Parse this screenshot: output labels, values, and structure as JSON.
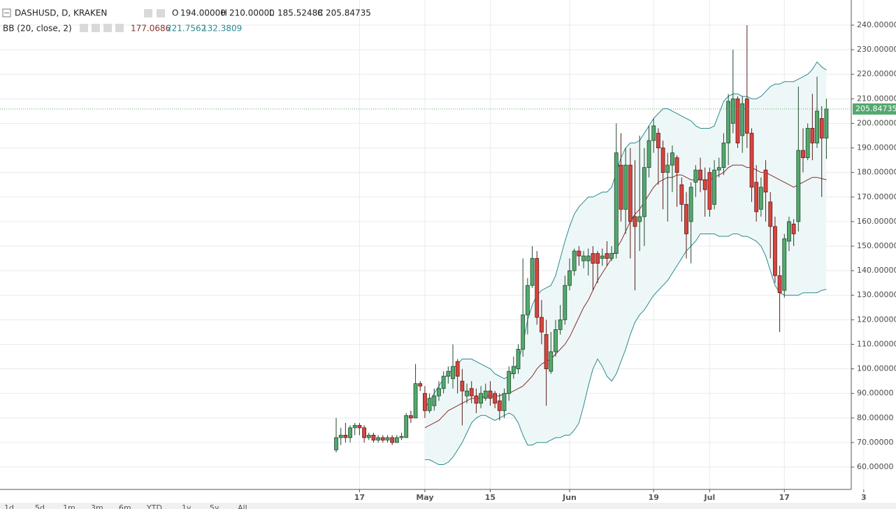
{
  "chart_data": {
    "type": "candlestick",
    "title": "DASHUSD, D, KRAKEN",
    "ohlc": [
      {
        "key": "O",
        "value": "194.00000"
      },
      {
        "key": "H",
        "value": "210.00000"
      },
      {
        "key": "L",
        "value": "185.52488"
      },
      {
        "key": "C",
        "value": "205.84735"
      }
    ],
    "indicator": {
      "name": "BB (20, close, 2)",
      "values": [
        "177.0686",
        "221.7562",
        "132.3809"
      ],
      "colors": [
        "#8b2d2d",
        "#2a8a8f",
        "#2a8a8f"
      ]
    },
    "categories": [
      null,
      null,
      null,
      null,
      null,
      "17",
      null,
      null,
      null,
      null,
      null,
      null,
      null,
      null,
      null,
      null,
      null,
      null,
      null,
      "May",
      null,
      null,
      null,
      null,
      null,
      null,
      null,
      null,
      null,
      null,
      null,
      null,
      null,
      "15",
      null,
      null,
      null,
      null,
      null,
      null,
      null,
      null,
      null,
      null,
      null,
      null,
      null,
      null,
      null,
      null,
      "Jun",
      null,
      null,
      null,
      null,
      null,
      null,
      null,
      null,
      null,
      null,
      null,
      null,
      null,
      null,
      null,
      null,
      null,
      "19",
      null,
      null,
      null,
      null,
      null,
      null,
      null,
      null,
      null,
      null,
      null,
      "Jul",
      null,
      null,
      null,
      null,
      null,
      null,
      null,
      null,
      null,
      null,
      null,
      null,
      null,
      null,
      null,
      "17",
      null,
      null,
      null,
      null,
      null,
      null,
      null,
      null,
      null,
      null,
      null,
      null,
      null,
      null,
      null,
      null,
      "3"
    ],
    "open": [
      67,
      72,
      73,
      72,
      76,
      77,
      76,
      72,
      73,
      71,
      72,
      71,
      72,
      70,
      72,
      72,
      81,
      80,
      94,
      90,
      83,
      85,
      89,
      92,
      97,
      96,
      103,
      95,
      89,
      92,
      89,
      86,
      88,
      91,
      90,
      87,
      83,
      90,
      98,
      100,
      108,
      122,
      134,
      145,
      121,
      114,
      99,
      107,
      116,
      120,
      134,
      140,
      148,
      144,
      144,
      147,
      147,
      145,
      147,
      145,
      147,
      183,
      165,
      183,
      162,
      160,
      162,
      182,
      193,
      196,
      190,
      180,
      183,
      186,
      175,
      167,
      160,
      176,
      181,
      177,
      180,
      167,
      181,
      182,
      192,
      200,
      210,
      195,
      210,
      196,
      176,
      165,
      181,
      168,
      158,
      138,
      132,
      152,
      159,
      160,
      189,
      186,
      198,
      192,
      202,
      194,
      null,
      null,
      null,
      null,
      null,
      null,
      null,
      null
    ],
    "high": [
      80,
      76,
      78,
      77,
      78,
      78,
      77,
      74,
      74,
      73,
      73,
      73,
      73,
      73,
      74,
      82,
      83,
      102,
      95,
      93,
      90,
      92,
      95,
      99,
      101,
      110,
      104,
      100,
      94,
      95,
      92,
      93,
      94,
      95,
      91,
      90,
      92,
      101,
      105,
      110,
      145,
      137,
      150,
      148,
      128,
      120,
      115,
      120,
      126,
      138,
      145,
      149,
      150,
      148,
      149,
      150,
      148,
      149,
      152,
      150,
      200,
      196,
      190,
      190,
      185,
      195,
      190,
      199,
      202,
      198,
      193,
      188,
      191,
      187,
      178,
      172,
      176,
      183,
      186,
      182,
      182,
      185,
      186,
      196,
      212,
      230,
      211,
      211,
      240,
      198,
      183,
      178,
      185,
      172,
      162,
      142,
      155,
      162,
      161,
      215,
      198,
      200,
      212,
      219,
      207,
      210,
      null,
      null,
      null,
      null,
      null,
      null,
      null,
      null
    ],
    "low": [
      66,
      69,
      70,
      70,
      73,
      73,
      70,
      71,
      70,
      70,
      70,
      70,
      69,
      70,
      71,
      72,
      78,
      80,
      91,
      80,
      82,
      83,
      87,
      90,
      94,
      92,
      90,
      77,
      86,
      86,
      82,
      84,
      87,
      85,
      84,
      79,
      80,
      87,
      96,
      98,
      105,
      114,
      133,
      118,
      110,
      85,
      98,
      105,
      114,
      118,
      132,
      138,
      142,
      141,
      138,
      132,
      135,
      142,
      142,
      144,
      145,
      160,
      155,
      145,
      132,
      148,
      150,
      178,
      188,
      175,
      165,
      160,
      172,
      166,
      160,
      145,
      143,
      170,
      172,
      162,
      162,
      165,
      178,
      179,
      183,
      196,
      190,
      188,
      190,
      168,
      160,
      162,
      160,
      145,
      135,
      115,
      129,
      148,
      150,
      156,
      180,
      185,
      185,
      190,
      170,
      185.52488,
      null,
      null,
      null,
      null,
      null,
      null,
      null,
      null
    ],
    "close": [
      72,
      73,
      72,
      76,
      77,
      76,
      72,
      73,
      71,
      72,
      71,
      72,
      70,
      72,
      72.5,
      81,
      80,
      94,
      93,
      83,
      88,
      89,
      92,
      97,
      99,
      101,
      97,
      91,
      91,
      89,
      86,
      90,
      91,
      88,
      86,
      83,
      90,
      99,
      101,
      108,
      122,
      134,
      145,
      121,
      115,
      100,
      107,
      116,
      120,
      134,
      140,
      148,
      146,
      146,
      146,
      143,
      143,
      146,
      145,
      147,
      188,
      165,
      183,
      160,
      158,
      162,
      182,
      193,
      199,
      190,
      180,
      183,
      188,
      180,
      167,
      155,
      174,
      181,
      177,
      173,
      165,
      181,
      182,
      192,
      209,
      210,
      192,
      208,
      196,
      174,
      164,
      174,
      172,
      158,
      138,
      131,
      153,
      160,
      155,
      189,
      186,
      198,
      192,
      205,
      194,
      205.84735,
      null,
      null,
      null,
      null,
      null,
      null,
      null,
      null
    ],
    "up_color": "#53a96e",
    "down_color": "#d9443e",
    "overlays": [
      {
        "color": "#8b2d2d",
        "values": [
          null,
          null,
          null,
          null,
          null,
          null,
          null,
          null,
          null,
          null,
          null,
          null,
          null,
          null,
          null,
          null,
          null,
          null,
          null,
          76,
          77,
          78,
          79,
          81,
          83,
          84,
          85,
          86,
          87,
          88,
          88,
          88,
          89,
          89,
          89,
          89,
          90,
          90,
          91,
          92,
          93,
          95,
          97,
          100,
          102,
          103,
          104,
          106,
          108,
          110,
          113,
          117,
          121,
          125,
          128,
          132,
          136,
          139,
          142,
          145,
          149,
          152,
          156,
          160,
          163,
          165,
          168,
          171,
          174,
          176,
          177,
          178,
          178,
          179,
          179,
          178,
          177,
          177,
          177,
          177,
          177,
          178,
          179,
          180,
          182,
          183,
          183,
          183,
          182,
          182,
          181,
          180,
          180,
          179,
          178,
          177,
          176,
          175,
          174,
          175,
          176,
          177,
          178,
          178,
          177.5,
          177.0686,
          null,
          null,
          null,
          null,
          null,
          null,
          null,
          null
        ]
      },
      {
        "color": "#2a8a8f",
        "values": [
          null,
          null,
          null,
          null,
          null,
          null,
          null,
          null,
          null,
          null,
          null,
          null,
          null,
          null,
          null,
          null,
          null,
          null,
          null,
          84,
          87,
          90,
          93,
          96,
          98,
          100,
          102,
          104,
          104,
          104,
          103,
          102,
          101,
          100,
          98,
          97,
          96,
          97,
          99,
          103,
          110,
          120,
          126,
          130,
          132,
          133,
          134,
          138,
          145,
          152,
          158,
          163,
          166,
          168,
          170,
          170,
          171,
          172,
          172,
          174,
          180,
          186,
          190,
          192,
          192,
          193,
          196,
          199,
          202,
          204,
          206,
          206,
          205,
          204,
          203,
          202,
          201,
          199,
          198,
          198,
          198,
          199,
          204,
          209,
          211,
          212,
          212,
          211,
          211,
          210,
          210,
          211,
          213,
          215,
          216,
          216,
          217,
          217,
          217,
          218,
          219,
          220,
          222,
          225,
          223,
          221.7562,
          null,
          null,
          null,
          null,
          null,
          null,
          null,
          null
        ]
      },
      {
        "color": "#2a8a8f",
        "values": [
          null,
          null,
          null,
          null,
          null,
          null,
          null,
          null,
          null,
          null,
          null,
          null,
          null,
          null,
          null,
          null,
          null,
          null,
          null,
          63,
          63,
          62,
          61,
          61,
          62,
          64,
          67,
          70,
          74,
          78,
          80,
          81,
          81,
          80,
          79,
          80,
          81,
          82,
          81,
          78,
          73,
          69,
          69,
          70,
          70,
          70,
          71,
          72,
          72,
          73,
          73,
          75,
          78,
          85,
          93,
          100,
          104,
          101,
          97,
          95,
          98,
          103,
          108,
          114,
          119,
          122,
          124,
          127,
          130,
          132,
          134,
          136,
          139,
          142,
          145,
          148,
          150,
          152,
          155,
          155,
          155,
          155,
          154,
          154,
          154,
          155,
          155,
          154,
          154,
          153,
          152,
          150,
          146,
          140,
          134,
          131,
          130,
          130,
          130,
          130,
          131,
          131,
          131,
          131,
          132,
          132.3809,
          null,
          null,
          null,
          null,
          null,
          null,
          null,
          null
        ]
      }
    ],
    "band_fill": "#eef7f7",
    "ylim": [
      50.9,
      250.25
    ],
    "yticks": [
      {
        "value": 60,
        "label": "60.00000"
      },
      {
        "value": 70,
        "label": "70.00000"
      },
      {
        "value": 80,
        "label": "80.00000"
      },
      {
        "value": 90,
        "label": "90.00000"
      },
      {
        "value": 100,
        "label": "100.00000"
      },
      {
        "value": 110,
        "label": "110.00000"
      },
      {
        "value": 120,
        "label": "120.00000"
      },
      {
        "value": 130,
        "label": "130.00000"
      },
      {
        "value": 140,
        "label": "140.00000"
      },
      {
        "value": 150,
        "label": "150.00000"
      },
      {
        "value": 160,
        "label": "160.00000"
      },
      {
        "value": 170,
        "label": "170.00000"
      },
      {
        "value": 180,
        "label": "180.00000"
      },
      {
        "value": 190,
        "label": "190.00000"
      },
      {
        "value": 200,
        "label": "200.00000"
      },
      {
        "value": 210,
        "label": "210.00000"
      },
      {
        "value": 220,
        "label": "220.00000"
      },
      {
        "value": 230,
        "label": "230.00000"
      },
      {
        "value": 240,
        "label": "240.00000"
      }
    ],
    "grid": true,
    "last_price": {
      "value": 205.84735,
      "label": "205.84735",
      "color": "#53a96e"
    }
  },
  "toolbar": [
    "1d",
    "5d",
    "1m",
    "3m",
    "6m",
    "YTD",
    "1y",
    "5y",
    "All"
  ]
}
